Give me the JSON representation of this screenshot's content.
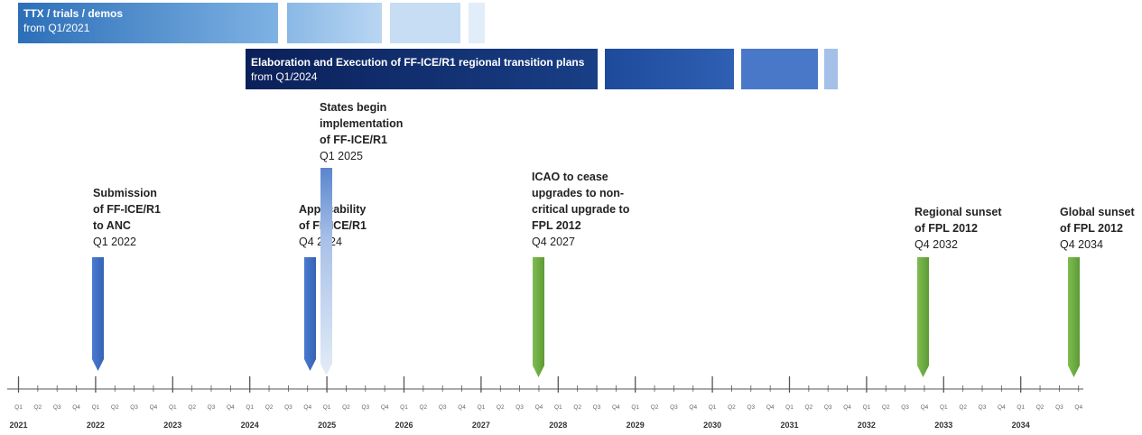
{
  "bars": {
    "ttx": {
      "title": "TTX / trials / demos",
      "subtitle": "from Q1/2021"
    },
    "elab": {
      "title": "Elaboration and Execution of FF-ICE/R1 regional transition plans",
      "subtitle": "from Q1/2024"
    }
  },
  "milestones": [
    {
      "title": "Submission\nof FF-ICE/R1\nto ANC",
      "date": "Q1 2022"
    },
    {
      "title": "Applicability\nof FF-ICE/R1",
      "date": "Q4 2024"
    },
    {
      "title": "States begin\nimplementation\nof FF-ICE/R1",
      "date": "Q1 2025"
    },
    {
      "title": "ICAO to cease\nupgrades to non-\ncritical upgrade to\nFPL 2012",
      "date": "Q4 2027"
    },
    {
      "title": "Regional sunset\nof FPL 2012",
      "date": "Q4 2032"
    },
    {
      "title": "Global sunset\nof FPL 2012",
      "date": "Q4 2034"
    }
  ],
  "colors": {
    "blue": "#4472c4",
    "light_blue": "#b4c7e7",
    "green": "#70ad47",
    "navy": "#0d2a6b"
  },
  "axis": {
    "years": [
      "2021",
      "2022",
      "2023",
      "2024",
      "2025",
      "2026",
      "2027",
      "2028",
      "2029",
      "2030",
      "2031",
      "2032",
      "2033",
      "2034"
    ],
    "quarters": [
      "Q1",
      "Q2",
      "Q3",
      "Q4"
    ]
  }
}
